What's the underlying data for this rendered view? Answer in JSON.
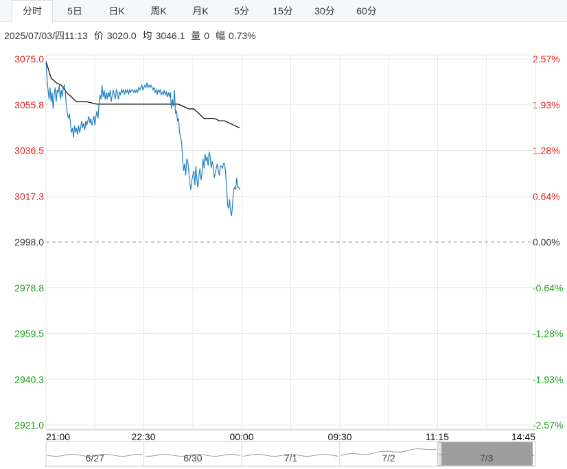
{
  "tabs": [
    {
      "label": "分时",
      "active": true
    },
    {
      "label": "5日",
      "active": false
    },
    {
      "label": "日K",
      "active": false
    },
    {
      "label": "周K",
      "active": false
    },
    {
      "label": "月K",
      "active": false
    },
    {
      "label": "5分",
      "active": false
    },
    {
      "label": "15分",
      "active": false
    },
    {
      "label": "30分",
      "active": false
    },
    {
      "label": "60分",
      "active": false
    }
  ],
  "info": {
    "datetime": "2025/07/03/四11:13",
    "price_label": "价",
    "price": "3020.0",
    "avg_label": "均",
    "avg": "3046.1",
    "vol_label": "量",
    "vol": "0",
    "range_label": "幅",
    "range": "0.73%"
  },
  "chart_data": {
    "type": "line",
    "ylim": [
      2921.0,
      3075.0
    ],
    "prev_close": 2998.0,
    "y_ticks_left": [
      "3075.0",
      "3055.8",
      "3036.5",
      "3017.3",
      "2998.0",
      "2978.8",
      "2959.5",
      "2940.3",
      "2921.0"
    ],
    "y_ticks_right": [
      "2.57%",
      "1.93%",
      "1.28%",
      "0.64%",
      "0.00%",
      "-0.64%",
      "-1.28%",
      "-1.93%",
      "-2.57%"
    ],
    "x_ticks": [
      "21:00",
      "22:30",
      "00:00",
      "09:30",
      "11:15",
      "14:45"
    ],
    "colors": {
      "up": "#e02020",
      "down": "#1a9f1a",
      "flat": "#333333",
      "price_line": "#1f7fbf",
      "avg_line": "#111111",
      "grid": "#e8e8e8"
    },
    "price": [
      [
        0,
        3074
      ],
      [
        1,
        3067
      ],
      [
        2,
        3062
      ],
      [
        3,
        3058
      ],
      [
        4,
        3063
      ],
      [
        5,
        3057
      ],
      [
        6,
        3061
      ],
      [
        7,
        3054
      ],
      [
        8,
        3060
      ],
      [
        9,
        3063
      ],
      [
        10,
        3057
      ],
      [
        11,
        3062
      ],
      [
        12,
        3061
      ],
      [
        13,
        3064
      ],
      [
        14,
        3058
      ],
      [
        15,
        3062
      ],
      [
        16,
        3059
      ],
      [
        17,
        3063
      ],
      [
        18,
        3064
      ],
      [
        19,
        3061
      ],
      [
        20,
        3055
      ],
      [
        21,
        3052
      ],
      [
        22,
        3050
      ],
      [
        23,
        3052
      ],
      [
        24,
        3048
      ],
      [
        25,
        3044
      ],
      [
        26,
        3046
      ],
      [
        27,
        3042
      ],
      [
        28,
        3047
      ],
      [
        29,
        3044
      ],
      [
        30,
        3046
      ],
      [
        31,
        3043
      ],
      [
        32,
        3047
      ],
      [
        33,
        3044
      ],
      [
        34,
        3046
      ],
      [
        35,
        3049
      ],
      [
        36,
        3046
      ],
      [
        37,
        3048
      ],
      [
        38,
        3045
      ],
      [
        39,
        3049
      ],
      [
        40,
        3047
      ],
      [
        41,
        3049
      ],
      [
        42,
        3051
      ],
      [
        43,
        3048
      ],
      [
        44,
        3050
      ],
      [
        45,
        3047
      ],
      [
        46,
        3049
      ],
      [
        47,
        3051
      ],
      [
        48,
        3047
      ],
      [
        49,
        3051
      ],
      [
        50,
        3053
      ],
      [
        51,
        3050
      ],
      [
        52,
        3056
      ],
      [
        53,
        3060
      ],
      [
        54,
        3058
      ],
      [
        55,
        3064
      ],
      [
        56,
        3059
      ],
      [
        57,
        3062
      ],
      [
        58,
        3058
      ],
      [
        59,
        3061
      ],
      [
        60,
        3058
      ],
      [
        61,
        3061
      ],
      [
        62,
        3059
      ],
      [
        63,
        3062
      ],
      [
        64,
        3057
      ],
      [
        65,
        3060
      ],
      [
        66,
        3062
      ],
      [
        67,
        3060
      ],
      [
        68,
        3058
      ],
      [
        69,
        3062
      ],
      [
        70,
        3061
      ],
      [
        71,
        3058
      ],
      [
        72,
        3061
      ],
      [
        73,
        3060
      ],
      [
        74,
        3062
      ],
      [
        75,
        3061
      ],
      [
        76,
        3062
      ],
      [
        77,
        3060
      ],
      [
        78,
        3062
      ],
      [
        79,
        3061
      ],
      [
        80,
        3062
      ],
      [
        81,
        3060
      ],
      [
        82,
        3062
      ],
      [
        83,
        3061
      ],
      [
        84,
        3062
      ],
      [
        85,
        3062
      ],
      [
        86,
        3061
      ],
      [
        87,
        3062
      ],
      [
        88,
        3061
      ],
      [
        89,
        3062
      ],
      [
        90,
        3061
      ],
      [
        91,
        3063
      ],
      [
        92,
        3062
      ],
      [
        93,
        3063
      ],
      [
        94,
        3064
      ],
      [
        95,
        3062
      ],
      [
        96,
        3063
      ],
      [
        97,
        3064
      ],
      [
        98,
        3063
      ],
      [
        99,
        3065
      ],
      [
        100,
        3063
      ],
      [
        101,
        3064
      ],
      [
        102,
        3063
      ],
      [
        103,
        3064
      ],
      [
        104,
        3063
      ],
      [
        105,
        3062
      ],
      [
        106,
        3063
      ],
      [
        107,
        3061
      ],
      [
        108,
        3062
      ],
      [
        109,
        3060
      ],
      [
        110,
        3062
      ],
      [
        111,
        3061
      ],
      [
        112,
        3062
      ],
      [
        113,
        3060
      ],
      [
        114,
        3061
      ],
      [
        115,
        3060
      ],
      [
        116,
        3062
      ],
      [
        117,
        3060
      ],
      [
        118,
        3061
      ],
      [
        119,
        3059
      ],
      [
        120,
        3061
      ],
      [
        121,
        3059
      ],
      [
        122,
        3061
      ],
      [
        123,
        3054
      ],
      [
        124,
        3058
      ],
      [
        125,
        3055
      ],
      [
        126,
        3062
      ],
      [
        127,
        3052
      ],
      [
        128,
        3053
      ],
      [
        129,
        3049
      ],
      [
        130,
        3050
      ],
      [
        131,
        3044
      ],
      [
        132,
        3042
      ],
      [
        133,
        3040
      ],
      [
        134,
        3033
      ],
      [
        135,
        3028
      ],
      [
        136,
        3031
      ],
      [
        137,
        3026
      ],
      [
        138,
        3033
      ],
      [
        139,
        3032
      ],
      [
        140,
        3028
      ],
      [
        141,
        3023
      ],
      [
        142,
        3020
      ],
      [
        143,
        3024
      ],
      [
        144,
        3026
      ],
      [
        145,
        3028
      ],
      [
        146,
        3022
      ],
      [
        147,
        3030
      ],
      [
        148,
        3024
      ],
      [
        149,
        3021
      ],
      [
        150,
        3026
      ],
      [
        151,
        3029
      ],
      [
        152,
        3024
      ],
      [
        153,
        3027
      ],
      [
        154,
        3033
      ],
      [
        155,
        3029
      ],
      [
        156,
        3035
      ],
      [
        157,
        3032
      ],
      [
        158,
        3034
      ],
      [
        159,
        3030
      ],
      [
        160,
        3036
      ],
      [
        161,
        3034
      ],
      [
        162,
        3029
      ],
      [
        163,
        3032
      ],
      [
        164,
        3030
      ],
      [
        165,
        3025
      ],
      [
        166,
        3027
      ],
      [
        167,
        3029
      ],
      [
        168,
        3031
      ],
      [
        169,
        3028
      ],
      [
        170,
        3026
      ],
      [
        171,
        3030
      ],
      [
        172,
        3030
      ],
      [
        173,
        3029
      ],
      [
        174,
        3031
      ],
      [
        175,
        3031
      ],
      [
        176,
        3028
      ],
      [
        177,
        3022
      ],
      [
        178,
        3014
      ],
      [
        179,
        3012
      ],
      [
        180,
        3016
      ],
      [
        181,
        3011
      ],
      [
        182,
        3009
      ],
      [
        183,
        3014
      ],
      [
        184,
        3020
      ],
      [
        185,
        3021
      ],
      [
        186,
        3020
      ],
      [
        187,
        3025
      ],
      [
        188,
        3021
      ],
      [
        189,
        3021
      ],
      [
        190,
        3020
      ]
    ],
    "avg": [
      [
        0,
        3074
      ],
      [
        5,
        3067
      ],
      [
        10,
        3065
      ],
      [
        15,
        3064
      ],
      [
        20,
        3061
      ],
      [
        25,
        3059
      ],
      [
        30,
        3057
      ],
      [
        40,
        3057
      ],
      [
        50,
        3056
      ],
      [
        60,
        3056
      ],
      [
        70,
        3056
      ],
      [
        80,
        3056
      ],
      [
        90,
        3056
      ],
      [
        100,
        3056
      ],
      [
        110,
        3056
      ],
      [
        120,
        3056
      ],
      [
        125,
        3056
      ],
      [
        130,
        3056
      ],
      [
        135,
        3055
      ],
      [
        140,
        3054
      ],
      [
        145,
        3054
      ],
      [
        150,
        3052
      ],
      [
        155,
        3050
      ],
      [
        160,
        3050
      ],
      [
        165,
        3050
      ],
      [
        170,
        3049
      ],
      [
        175,
        3049
      ],
      [
        180,
        3048
      ],
      [
        185,
        3047
      ],
      [
        190,
        3046
      ]
    ],
    "x_total_minutes": 480,
    "navigator": {
      "labels": [
        "6/27",
        "6/30",
        "7/1",
        "7/2",
        "7/3"
      ],
      "selected": "7/3"
    }
  }
}
